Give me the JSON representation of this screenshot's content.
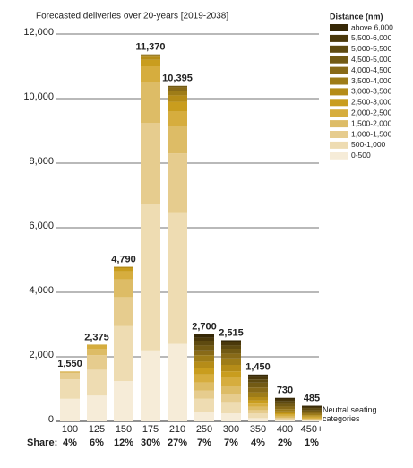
{
  "chart_data": {
    "type": "stacked_bar",
    "title": "Forecasted deliveries over 20-years [2019-2038]",
    "categories": [
      "100",
      "125",
      "150",
      "175",
      "210",
      "250",
      "300",
      "350",
      "400",
      "450+"
    ],
    "legend_title": "Distance (nm)",
    "series": [
      {
        "name": "0-500",
        "color": "#f6ecd8",
        "values": [
          700,
          800,
          1250,
          2200,
          2400,
          300,
          250,
          100,
          30,
          20
        ]
      },
      {
        "name": "500-1,000",
        "color": "#eedcb2",
        "values": [
          600,
          800,
          1700,
          4550,
          4050,
          400,
          350,
          150,
          40,
          20
        ]
      },
      {
        "name": "1,000-1,500",
        "color": "#e6cc8e",
        "values": [
          200,
          450,
          900,
          2500,
          1850,
          250,
          250,
          100,
          40,
          20
        ]
      },
      {
        "name": "1,500-2,000",
        "color": "#ddbc66",
        "values": [
          50,
          200,
          550,
          1250,
          850,
          250,
          250,
          100,
          40,
          25
        ]
      },
      {
        "name": "2,000-2,500",
        "color": "#d6ad3e",
        "values": [
          0,
          100,
          250,
          500,
          450,
          250,
          250,
          100,
          50,
          30
        ]
      },
      {
        "name": "2,500-3,000",
        "color": "#c99d1e",
        "values": [
          0,
          25,
          100,
          200,
          300,
          200,
          200,
          100,
          50,
          30
        ]
      },
      {
        "name": "3,000-3,500",
        "color": "#b58c18",
        "values": [
          0,
          0,
          40,
          100,
          200,
          200,
          200,
          100,
          60,
          40
        ]
      },
      {
        "name": "3,500-4,000",
        "color": "#9e7c18",
        "values": [
          0,
          0,
          0,
          50,
          150,
          200,
          200,
          150,
          70,
          50
        ]
      },
      {
        "name": "4,000-4,500",
        "color": "#886a18",
        "values": [
          0,
          0,
          0,
          20,
          100,
          150,
          150,
          150,
          80,
          50
        ]
      },
      {
        "name": "4,500-5,000",
        "color": "#725a14",
        "values": [
          0,
          0,
          0,
          0,
          45,
          150,
          150,
          150,
          80,
          60
        ]
      },
      {
        "name": "5,000-5,500",
        "color": "#5e4a10",
        "values": [
          0,
          0,
          0,
          0,
          0,
          150,
          100,
          100,
          80,
          60
        ]
      },
      {
        "name": "5,500-6,000",
        "color": "#4a380a",
        "values": [
          0,
          0,
          0,
          0,
          0,
          100,
          100,
          100,
          60,
          40
        ]
      },
      {
        "name": "above 6,000",
        "color": "#362806",
        "values": [
          0,
          0,
          0,
          0,
          0,
          100,
          65,
          50,
          50,
          40
        ]
      }
    ],
    "totals": [
      1550,
      2375,
      4790,
      11370,
      10395,
      2700,
      2515,
      1450,
      730,
      485
    ],
    "total_labels": [
      "1,550",
      "2,375",
      "4,790",
      "11,370",
      "10,395",
      "2,700",
      "2,515",
      "1,450",
      "730",
      "485"
    ],
    "share_label": "Share:",
    "shares": [
      "4%",
      "6%",
      "12%",
      "30%",
      "27%",
      "7%",
      "7%",
      "4%",
      "2%",
      "1%"
    ],
    "annotation": "Neutral seating categories",
    "ylim": [
      0,
      12000
    ],
    "yticks": [
      0,
      {
        "value": 2000,
        "label": "2,000"
      },
      {
        "value": 4000,
        "label": "4,000"
      },
      {
        "value": 6000,
        "label": "6,000"
      },
      {
        "value": 8000,
        "label": "8,000"
      },
      {
        "value": 10000,
        "label": "10,000"
      },
      {
        "value": 12000,
        "label": "12,000"
      }
    ],
    "grid": true
  }
}
